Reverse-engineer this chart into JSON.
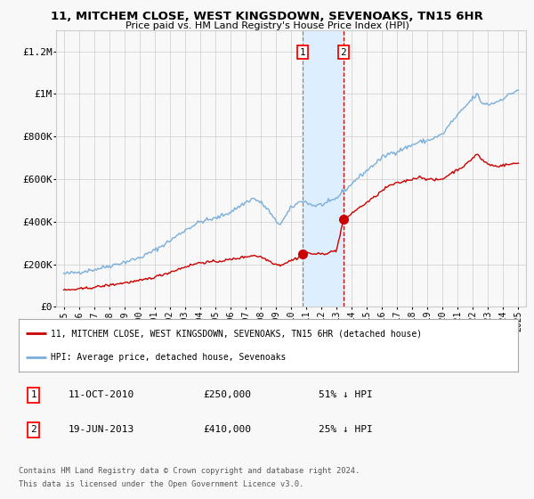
{
  "title": "11, MITCHEM CLOSE, WEST KINGSDOWN, SEVENOAKS, TN15 6HR",
  "subtitle": "Price paid vs. HM Land Registry's House Price Index (HPI)",
  "legend_line1": "11, MITCHEM CLOSE, WEST KINGSDOWN, SEVENOAKS, TN15 6HR (detached house)",
  "legend_line2": "HPI: Average price, detached house, Sevenoaks",
  "footer1": "Contains HM Land Registry data © Crown copyright and database right 2024.",
  "footer2": "This data is licensed under the Open Government Licence v3.0.",
  "point1_date": "11-OCT-2010",
  "point1_price": "£250,000",
  "point1_hpi": "51% ↓ HPI",
  "point2_date": "19-JUN-2013",
  "point2_price": "£410,000",
  "point2_hpi": "25% ↓ HPI",
  "point1_x": 2010.78,
  "point1_y": 250000,
  "point2_x": 2013.46,
  "point2_y": 410000,
  "ylim": [
    0,
    1300000
  ],
  "xlim_start": 1994.5,
  "xlim_end": 2025.5,
  "red_color": "#cc0000",
  "blue_color": "#7aafdb",
  "shade_color": "#ddeeff",
  "background_color": "#f8f8f8",
  "grid_color": "#cccccc",
  "hpi_keypoints": [
    [
      1995,
      155000
    ],
    [
      1996,
      163000
    ],
    [
      1997,
      175000
    ],
    [
      1998,
      192000
    ],
    [
      1999,
      210000
    ],
    [
      2000,
      230000
    ],
    [
      2001,
      265000
    ],
    [
      2002,
      310000
    ],
    [
      2003,
      360000
    ],
    [
      2004,
      400000
    ],
    [
      2005,
      415000
    ],
    [
      2006,
      445000
    ],
    [
      2007,
      490000
    ],
    [
      2007.5,
      510000
    ],
    [
      2008,
      490000
    ],
    [
      2008.5,
      455000
    ],
    [
      2009,
      400000
    ],
    [
      2009.3,
      390000
    ],
    [
      2009.6,
      420000
    ],
    [
      2010,
      465000
    ],
    [
      2010.5,
      490000
    ],
    [
      2010.78,
      500000
    ],
    [
      2011,
      490000
    ],
    [
      2011.5,
      475000
    ],
    [
      2012,
      480000
    ],
    [
      2012.5,
      490000
    ],
    [
      2013,
      510000
    ],
    [
      2013.46,
      545000
    ],
    [
      2013.8,
      560000
    ],
    [
      2014,
      580000
    ],
    [
      2014.5,
      610000
    ],
    [
      2015,
      640000
    ],
    [
      2015.5,
      670000
    ],
    [
      2016,
      700000
    ],
    [
      2016.5,
      720000
    ],
    [
      2017,
      730000
    ],
    [
      2017.5,
      745000
    ],
    [
      2018,
      760000
    ],
    [
      2018.5,
      775000
    ],
    [
      2019,
      780000
    ],
    [
      2019.5,
      795000
    ],
    [
      2020,
      810000
    ],
    [
      2020.5,
      860000
    ],
    [
      2021,
      900000
    ],
    [
      2021.5,
      940000
    ],
    [
      2022,
      980000
    ],
    [
      2022.3,
      1000000
    ],
    [
      2022.5,
      960000
    ],
    [
      2023,
      950000
    ],
    [
      2023.5,
      960000
    ],
    [
      2024,
      980000
    ],
    [
      2024.5,
      1000000
    ],
    [
      2025,
      1020000
    ]
  ],
  "red_keypoints": [
    [
      1995,
      78000
    ],
    [
      1996,
      83000
    ],
    [
      1997,
      92000
    ],
    [
      1998,
      102000
    ],
    [
      1999,
      113000
    ],
    [
      2000,
      122000
    ],
    [
      2001,
      140000
    ],
    [
      2002,
      162000
    ],
    [
      2003,
      188000
    ],
    [
      2004,
      208000
    ],
    [
      2005,
      212000
    ],
    [
      2006,
      222000
    ],
    [
      2007,
      235000
    ],
    [
      2007.5,
      242000
    ],
    [
      2008,
      235000
    ],
    [
      2008.5,
      218000
    ],
    [
      2009,
      200000
    ],
    [
      2009.3,
      196000
    ],
    [
      2009.6,
      205000
    ],
    [
      2010,
      218000
    ],
    [
      2010.5,
      232000
    ],
    [
      2010.78,
      250000
    ],
    [
      2011,
      255000
    ],
    [
      2011.5,
      248000
    ],
    [
      2012,
      248000
    ],
    [
      2012.5,
      255000
    ],
    [
      2013,
      265000
    ],
    [
      2013.46,
      410000
    ],
    [
      2013.8,
      425000
    ],
    [
      2014,
      440000
    ],
    [
      2014.5,
      465000
    ],
    [
      2015,
      490000
    ],
    [
      2015.5,
      515000
    ],
    [
      2016,
      545000
    ],
    [
      2016.5,
      570000
    ],
    [
      2017,
      580000
    ],
    [
      2017.5,
      590000
    ],
    [
      2018,
      600000
    ],
    [
      2018.5,
      610000
    ],
    [
      2019,
      600000
    ],
    [
      2019.5,
      595000
    ],
    [
      2020,
      600000
    ],
    [
      2020.5,
      625000
    ],
    [
      2021,
      645000
    ],
    [
      2021.5,
      665000
    ],
    [
      2022,
      700000
    ],
    [
      2022.3,
      720000
    ],
    [
      2022.5,
      695000
    ],
    [
      2023,
      670000
    ],
    [
      2023.5,
      660000
    ],
    [
      2024,
      665000
    ],
    [
      2024.5,
      670000
    ],
    [
      2025,
      675000
    ]
  ]
}
